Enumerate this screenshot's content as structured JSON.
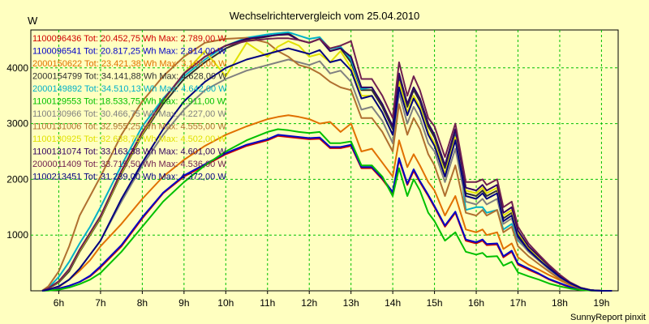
{
  "chart_data": {
    "type": "line",
    "title": "Wechselrichtervergleich vom 25.04.2010",
    "ylabel": "W",
    "footer": "SunnyReport pinxit",
    "x_ticks": [
      "6h",
      "7h",
      "8h",
      "9h",
      "10h",
      "11h",
      "12h",
      "13h",
      "14h",
      "15h",
      "16h",
      "17h",
      "18h",
      "19h"
    ],
    "y_ticks": [
      1000,
      2000,
      3000,
      4000
    ],
    "xlim": [
      5.33,
      19.4
    ],
    "ylim": [
      0,
      4680
    ],
    "grid": true,
    "legend_position": "top-left",
    "legend": [
      {
        "text": "1100096436 Tot: 20.452,75 Wh Max: 2.789,00 W",
        "color": "#d00000"
      },
      {
        "text": "1100096541 Tot: 20.817,25 Wh Max: 2.814,00 W",
        "color": "#0000c8"
      },
      {
        "text": "2000150622 Tot: 23.421,38 Wh Max: 3.166,00 W",
        "color": "#e07000"
      },
      {
        "text": "2000154799 Tot: 34.141,88 Wh Max: 4.628,00 W",
        "color": "#303030"
      },
      {
        "text": "2000149892 Tot: 34.510,13 Wh Max: 4.642,00 W",
        "color": "#00b0c8"
      },
      {
        "text": "1100129553 Tot: 18.533,75 Wh Max: 2.911,00 W",
        "color": "#00c000"
      },
      {
        "text": "1100130966 Tot: 30.466,75 Wh Max: 4.227,00 W",
        "color": "#808080"
      },
      {
        "text": "1100131006 Tot: 32.955,25 Wh Max: 4.555,00 W",
        "color": "#b07030"
      },
      {
        "text": "1100130925 Tot: 32.638,75 Wh Max: 4.502,00 W",
        "color": "#e0e000"
      },
      {
        "text": "1100131074 Tot: 33.163,38 Wh Max: 4.601,00 W",
        "color": "#300060"
      },
      {
        "text": "2000011409 Tot: 33.715,50 Wh Max: 4.536,00 W",
        "color": "#702050"
      },
      {
        "text": "1100213451 Tot: 31.239,00 Wh Max: 4.372,00 W",
        "color": "#000080"
      }
    ],
    "x": [
      5.6,
      5.75,
      6.0,
      6.25,
      6.5,
      6.75,
      7.0,
      7.5,
      8.0,
      8.5,
      9.0,
      9.5,
      10.0,
      10.5,
      11.0,
      11.25,
      11.5,
      11.75,
      12.0,
      12.25,
      12.5,
      12.75,
      13.0,
      13.25,
      13.5,
      13.75,
      14.0,
      14.15,
      14.35,
      14.5,
      14.65,
      14.85,
      15.0,
      15.25,
      15.5,
      15.75,
      16.0,
      16.15,
      16.25,
      16.5,
      16.65,
      16.85,
      17.0,
      17.25,
      17.5,
      17.75,
      18.0,
      18.25,
      18.5,
      18.75,
      19.0,
      19.25
    ],
    "series": [
      {
        "name": "1100096436",
        "color": "#d00000",
        "values": [
          0,
          10,
          40,
          90,
          160,
          260,
          420,
          800,
          1300,
          1750,
          2050,
          2250,
          2450,
          2600,
          2700,
          2780,
          2760,
          2740,
          2720,
          2730,
          2560,
          2560,
          2600,
          2200,
          2200,
          2000,
          1750,
          2350,
          1900,
          2150,
          1950,
          1700,
          1500,
          1150,
          1400,
          900,
          850,
          900,
          820,
          830,
          600,
          700,
          470,
          380,
          300,
          200,
          130,
          60,
          20,
          5,
          0,
          0
        ]
      },
      {
        "name": "1100096541",
        "color": "#0000c8",
        "values": [
          0,
          10,
          40,
          90,
          160,
          270,
          440,
          820,
          1320,
          1760,
          2070,
          2270,
          2470,
          2620,
          2720,
          2800,
          2780,
          2760,
          2740,
          2750,
          2580,
          2580,
          2620,
          2220,
          2220,
          2020,
          1770,
          2380,
          1920,
          2180,
          1970,
          1720,
          1520,
          1170,
          1420,
          920,
          870,
          920,
          840,
          850,
          620,
          720,
          490,
          400,
          310,
          210,
          140,
          70,
          25,
          8,
          0,
          0
        ]
      },
      {
        "name": "2000150622",
        "color": "#e07000",
        "values": [
          0,
          20,
          70,
          200,
          360,
          550,
          800,
          1200,
          1650,
          2050,
          2350,
          2600,
          2800,
          2950,
          3080,
          3120,
          3150,
          3120,
          3080,
          3000,
          3030,
          2850,
          3000,
          2500,
          2550,
          2300,
          2050,
          2700,
          2220,
          2450,
          2250,
          1950,
          1800,
          1350,
          1700,
          1100,
          1050,
          1100,
          1000,
          1050,
          750,
          850,
          600,
          470,
          380,
          280,
          190,
          100,
          40,
          10,
          0,
          0
        ]
      },
      {
        "name": "2000154799",
        "color": "#303030",
        "values": [
          0,
          40,
          150,
          350,
          700,
          1000,
          1300,
          2100,
          2800,
          3350,
          3800,
          4100,
          4350,
          4500,
          4560,
          4600,
          4620,
          4500,
          4450,
          4520,
          4300,
          4350,
          4100,
          3600,
          3600,
          3300,
          2900,
          3850,
          3300,
          3600,
          3400,
          2950,
          2750,
          2200,
          2850,
          1750,
          1700,
          1800,
          1700,
          1800,
          1300,
          1400,
          1000,
          750,
          580,
          420,
          260,
          140,
          50,
          10,
          0,
          0
        ]
      },
      {
        "name": "2000149892",
        "color": "#00b0c8",
        "values": [
          0,
          50,
          250,
          520,
          850,
          1150,
          1500,
          2250,
          2950,
          3450,
          3850,
          4150,
          4400,
          4540,
          4600,
          4620,
          4640,
          4580,
          4520,
          4550,
          4340,
          4380,
          4150,
          3620,
          3650,
          3350,
          2950,
          3900,
          3350,
          3650,
          3450,
          3000,
          2800,
          2250,
          2900,
          1450,
          1500,
          1500,
          1400,
          1450,
          1100,
          1200,
          900,
          720,
          560,
          400,
          250,
          140,
          50,
          10,
          0,
          0
        ]
      },
      {
        "name": "1100129553",
        "color": "#00c000",
        "values": [
          0,
          5,
          20,
          60,
          120,
          200,
          320,
          700,
          1150,
          1600,
          1950,
          2250,
          2500,
          2700,
          2850,
          2900,
          2880,
          2850,
          2830,
          2850,
          2650,
          2650,
          2680,
          2250,
          2250,
          2050,
          1700,
          2200,
          1700,
          2000,
          1800,
          1400,
          1250,
          900,
          1050,
          700,
          650,
          680,
          610,
          620,
          450,
          520,
          330,
          260,
          200,
          130,
          80,
          40,
          15,
          5,
          0,
          0
        ]
      },
      {
        "name": "1100130966",
        "color": "#808080",
        "values": [
          0,
          20,
          80,
          200,
          400,
          650,
          900,
          1600,
          2250,
          2800,
          3250,
          3600,
          3800,
          3950,
          4050,
          4100,
          4150,
          4100,
          4050,
          4120,
          3900,
          3950,
          3750,
          3250,
          3300,
          3050,
          2650,
          3550,
          3000,
          3300,
          3100,
          2650,
          2500,
          1950,
          2550,
          1600,
          1550,
          1650,
          1550,
          1650,
          1200,
          1300,
          920,
          700,
          540,
          380,
          240,
          130,
          50,
          10,
          0,
          0
        ]
      },
      {
        "name": "1100131006",
        "color": "#b07030",
        "values": [
          0,
          80,
          350,
          800,
          1350,
          1700,
          2050,
          2800,
          3400,
          3850,
          4200,
          4450,
          4520,
          4540,
          4450,
          4300,
          4200,
          4050,
          4000,
          3900,
          3750,
          3650,
          3600,
          3100,
          3100,
          2850,
          2500,
          3350,
          2800,
          3100,
          2900,
          2450,
          2250,
          1700,
          2250,
          1400,
          1350,
          1450,
          1350,
          1450,
          1050,
          1150,
          800,
          620,
          480,
          340,
          210,
          110,
          40,
          10,
          0,
          0
        ]
      },
      {
        "name": "1100130925",
        "color": "#e0e000",
        "values": [
          0,
          40,
          160,
          380,
          720,
          1020,
          1320,
          2120,
          2820,
          3400,
          3900,
          4300,
          3850,
          4450,
          4200,
          4380,
          4480,
          4400,
          4200,
          4250,
          4100,
          4300,
          4000,
          3500,
          3500,
          3200,
          2800,
          3750,
          3200,
          3500,
          3300,
          2850,
          2650,
          2100,
          2750,
          1800,
          1750,
          1850,
          1750,
          1850,
          1350,
          1450,
          1050,
          780,
          600,
          430,
          270,
          145,
          55,
          12,
          0,
          0
        ]
      },
      {
        "name": "1100131074",
        "color": "#300060",
        "values": [
          0,
          45,
          170,
          390,
          740,
          1040,
          1340,
          2150,
          2850,
          3420,
          3900,
          4200,
          4400,
          4520,
          4570,
          4590,
          4600,
          4500,
          4450,
          4520,
          4300,
          4350,
          4200,
          3650,
          3650,
          3350,
          2950,
          3900,
          3350,
          3650,
          3450,
          3000,
          2800,
          2250,
          2900,
          1850,
          1800,
          1900,
          1800,
          1900,
          1400,
          1500,
          1080,
          800,
          620,
          440,
          280,
          150,
          55,
          12,
          0,
          0
        ]
      },
      {
        "name": "2000011409",
        "color": "#702050",
        "values": [
          0,
          45,
          170,
          390,
          740,
          1040,
          1340,
          2150,
          2850,
          3420,
          3900,
          4200,
          4400,
          4480,
          4520,
          4530,
          4530,
          4500,
          4450,
          4520,
          4350,
          4400,
          4480,
          3800,
          3800,
          3500,
          3100,
          4100,
          3500,
          3850,
          3600,
          3100,
          2950,
          2400,
          3000,
          1950,
          1950,
          2000,
          1900,
          2000,
          1500,
          1600,
          1150,
          850,
          650,
          460,
          290,
          150,
          55,
          12,
          0,
          0
        ]
      },
      {
        "name": "1100213451",
        "color": "#000080",
        "values": [
          0,
          20,
          80,
          200,
          400,
          650,
          900,
          1650,
          2300,
          2900,
          3400,
          3750,
          4000,
          4150,
          4250,
          4300,
          4350,
          4300,
          4250,
          4320,
          4100,
          4150,
          3950,
          3450,
          3500,
          3200,
          2800,
          3650,
          3150,
          3450,
          3250,
          2800,
          2600,
          2050,
          2700,
          1700,
          1650,
          1750,
          1650,
          1750,
          1250,
          1350,
          970,
          730,
          560,
          400,
          250,
          135,
          50,
          10,
          0,
          0
        ]
      }
    ]
  }
}
